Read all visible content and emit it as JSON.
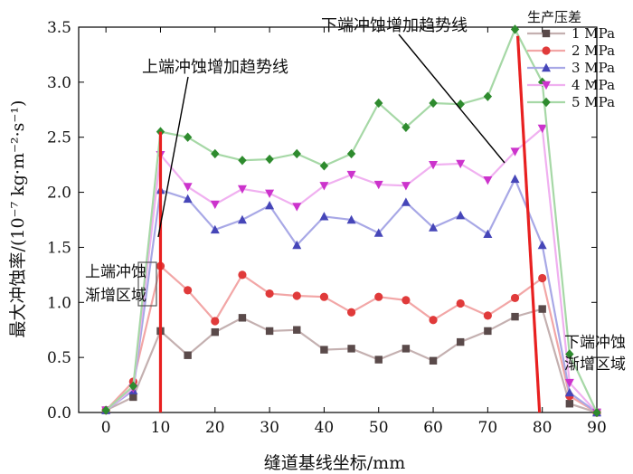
{
  "chart_data": {
    "type": "line",
    "title": "",
    "xlabel": "缝道基线坐标/mm",
    "ylabel": "最大冲蚀率/(10⁻⁷ kg·m⁻²·s⁻¹)",
    "xlim": [
      -5,
      90
    ],
    "ylim": [
      0,
      3.5
    ],
    "x_ticks": [
      0,
      10,
      20,
      30,
      40,
      50,
      60,
      70,
      80,
      90
    ],
    "y_ticks": [
      0.0,
      0.5,
      1.0,
      1.5,
      2.0,
      2.5,
      3.0,
      3.5
    ],
    "x": [
      0,
      5,
      10,
      15,
      20,
      25,
      30,
      35,
      40,
      45,
      50,
      55,
      60,
      65,
      70,
      75,
      80,
      85,
      90
    ],
    "legend_title": "生产压差",
    "legend_position": "top-right",
    "series": [
      {
        "name": "1 MPa",
        "color": "#5a4a4a",
        "line_color": "#c4b0b0",
        "marker": "square",
        "values": [
          0.02,
          0.14,
          0.74,
          0.52,
          0.73,
          0.86,
          0.74,
          0.75,
          0.57,
          0.58,
          0.48,
          0.58,
          0.47,
          0.64,
          0.74,
          0.87,
          0.94,
          0.08,
          0.0
        ]
      },
      {
        "name": "2 MPa",
        "color": "#e03a3a",
        "line_color": "#f2a6a6",
        "marker": "circle",
        "values": [
          0.02,
          0.28,
          1.33,
          1.11,
          0.83,
          1.25,
          1.08,
          1.06,
          1.05,
          0.91,
          1.05,
          1.02,
          0.84,
          0.99,
          0.88,
          1.04,
          1.22,
          0.15,
          0.0
        ]
      },
      {
        "name": "3 MPa",
        "color": "#4646b8",
        "line_color": "#a8a8e6",
        "marker": "triangle-up",
        "values": [
          0.02,
          0.2,
          2.02,
          1.94,
          1.66,
          1.75,
          1.88,
          1.52,
          1.78,
          1.75,
          1.63,
          1.91,
          1.68,
          1.79,
          1.62,
          2.12,
          1.52,
          0.18,
          0.0
        ]
      },
      {
        "name": "4 MPa",
        "color": "#cc33cc",
        "line_color": "#f0b0f0",
        "marker": "triangle-down",
        "values": [
          0.02,
          0.22,
          2.34,
          2.05,
          1.89,
          2.03,
          1.99,
          1.87,
          2.06,
          2.16,
          2.07,
          2.06,
          2.25,
          2.26,
          2.11,
          2.37,
          2.58,
          0.27,
          0.0
        ]
      },
      {
        "name": "5 MPa",
        "color": "#2e8b2e",
        "line_color": "#a6d8a6",
        "marker": "diamond",
        "values": [
          0.02,
          0.24,
          2.55,
          2.5,
          2.35,
          2.29,
          2.3,
          2.35,
          2.24,
          2.35,
          2.81,
          2.59,
          2.81,
          2.8,
          2.87,
          3.48,
          3.0,
          0.53,
          0.0
        ]
      }
    ],
    "trend_lines": [
      {
        "label": "upper-trend",
        "color": "#e82020",
        "points": [
          [
            10,
            0.0
          ],
          [
            10,
            2.55
          ]
        ]
      },
      {
        "label": "lower-trend",
        "color": "#e82020",
        "points": [
          [
            75.5,
            3.42
          ],
          [
            79.5,
            0.0
          ]
        ]
      }
    ],
    "annotations": [
      {
        "text": "上端冲蚀增加趋势线"
      },
      {
        "text": "下端冲蚀增加趋势线"
      },
      {
        "text": "上端冲蚀渐增区域",
        "lines": [
          "上端冲蚀",
          "渐增区域"
        ]
      },
      {
        "text": "下端冲蚀渐增区域",
        "lines": [
          "下端冲蚀",
          "渐增区域"
        ]
      }
    ]
  }
}
